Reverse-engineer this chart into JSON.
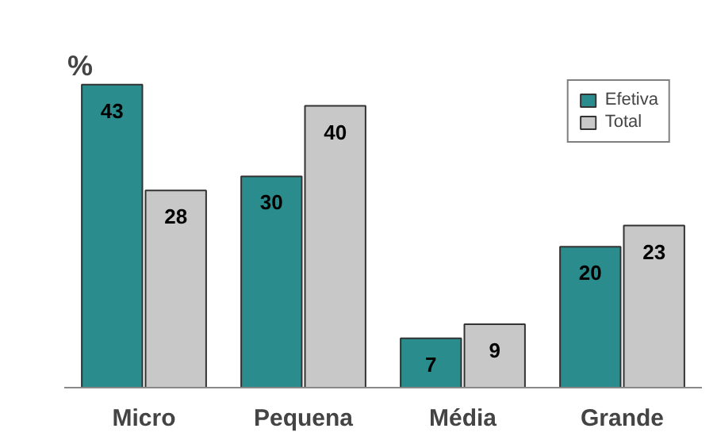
{
  "chart_data": {
    "type": "bar",
    "ylabel": "%",
    "categories": [
      "Micro",
      "Pequena",
      "Média",
      "Grande"
    ],
    "series": [
      {
        "name": "Efetiva",
        "color": "#2a8c8c",
        "values": [
          43,
          30,
          7,
          20
        ]
      },
      {
        "name": "Total",
        "color": "#c8c8c8",
        "values": [
          28,
          40,
          9,
          23
        ]
      }
    ],
    "data_labels": true,
    "legend": "top right",
    "grid": false
  }
}
